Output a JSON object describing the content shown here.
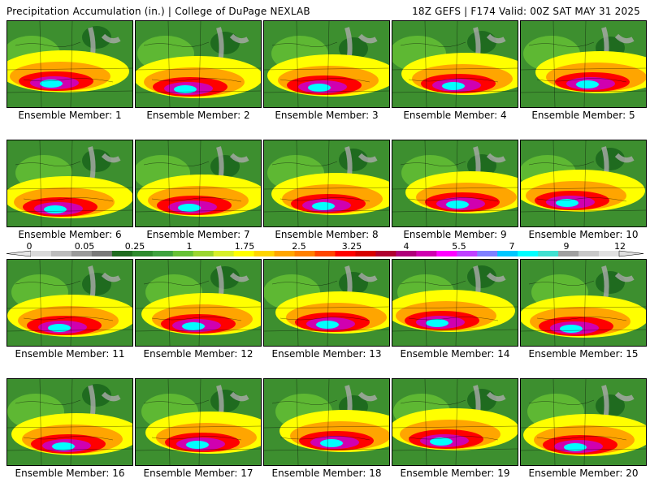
{
  "header": {
    "title": "Precipitation Accumulation (in.) | College of DuPage NEXLAB",
    "run_info": "18Z GEFS | F174 Valid: 00Z SAT MAY 31 2025"
  },
  "members": [
    {
      "label": "Ensemble Member: 1"
    },
    {
      "label": "Ensemble Member: 2"
    },
    {
      "label": "Ensemble Member: 3"
    },
    {
      "label": "Ensemble Member: 4"
    },
    {
      "label": "Ensemble Member: 5"
    },
    {
      "label": "Ensemble Member: 6"
    },
    {
      "label": "Ensemble Member: 7"
    },
    {
      "label": "Ensemble Member: 8"
    },
    {
      "label": "Ensemble Member: 9"
    },
    {
      "label": "Ensemble Member: 10"
    },
    {
      "label": "Ensemble Member: 11"
    },
    {
      "label": "Ensemble Member: 12"
    },
    {
      "label": "Ensemble Member: 13"
    },
    {
      "label": "Ensemble Member: 14"
    },
    {
      "label": "Ensemble Member: 15"
    },
    {
      "label": "Ensemble Member: 16"
    },
    {
      "label": "Ensemble Member: 17"
    },
    {
      "label": "Ensemble Member: 18"
    },
    {
      "label": "Ensemble Member: 19"
    },
    {
      "label": "Ensemble Member: 20"
    }
  ],
  "colorbar": {
    "tick_labels": [
      "0",
      "0.05",
      "0.25",
      "1",
      "1.75",
      "2.5",
      "3.25",
      "4",
      "5.5",
      "7",
      "9",
      "12"
    ],
    "colors": [
      "#d9d9d9",
      "#bcbcbc",
      "#9a9a9a",
      "#7a7a7a",
      "#1f6b1f",
      "#2e8b2e",
      "#3fa33f",
      "#66c235",
      "#9ad62f",
      "#d6ef2a",
      "#ffff00",
      "#ffd400",
      "#ffa500",
      "#ff7f00",
      "#ff4500",
      "#ff0000",
      "#d70000",
      "#b00030",
      "#b0007a",
      "#d000b0",
      "#ff00ff",
      "#c040ff",
      "#8080ff",
      "#00c8ff",
      "#00ffff",
      "#40e0d0",
      "#a0a0a0",
      "#c8c8c8",
      "#e0e0e0"
    ],
    "color_names": {
      "green": "#3d8f2f",
      "yellow": "#ffff00",
      "red": "#ff0000",
      "magenta": "#ff00ff",
      "cyan": "#00ffff"
    }
  }
}
